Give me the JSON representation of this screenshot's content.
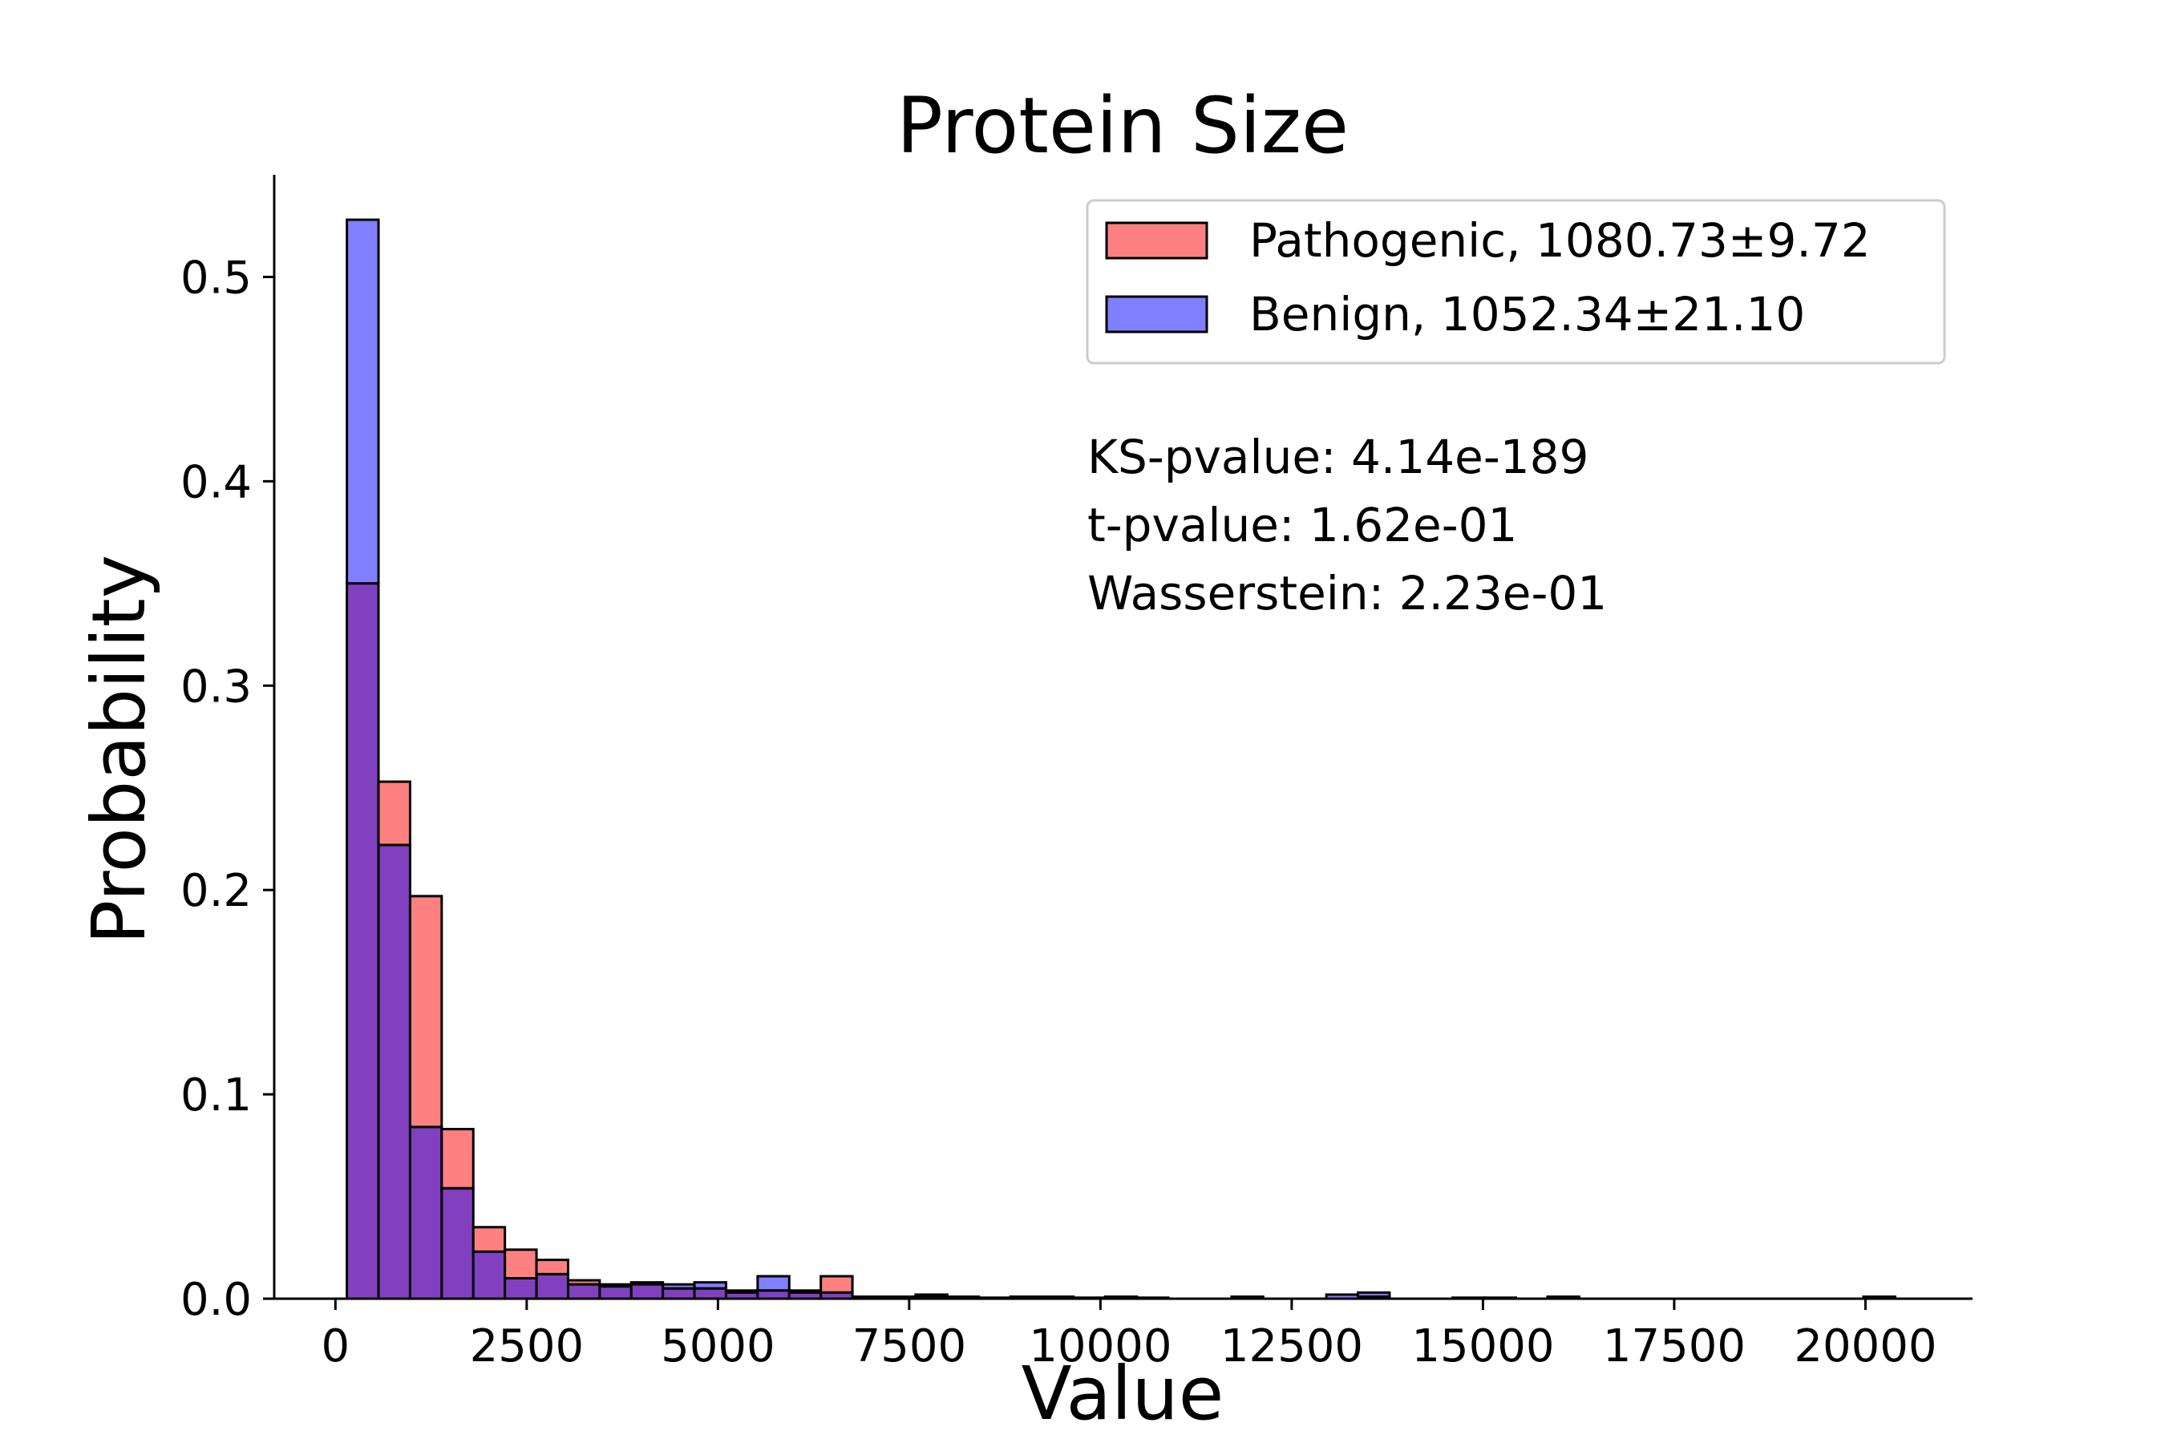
{
  "chart_data": {
    "type": "bar",
    "title": "Protein Size",
    "xlabel": "Value",
    "ylabel": "Probability",
    "xlim": [
      -800,
      21400
    ],
    "ylim": [
      0,
      0.55
    ],
    "xticks": [
      0,
      2500,
      5000,
      7500,
      10000,
      12500,
      15000,
      17500,
      20000
    ],
    "xtick_labels": [
      "0",
      "2500",
      "5000",
      "7500",
      "10000",
      "12500",
      "15000",
      "17500",
      "20000"
    ],
    "yticks": [
      0.0,
      0.1,
      0.2,
      0.3,
      0.4,
      0.5
    ],
    "ytick_labels": [
      "0.0",
      "0.1",
      "0.2",
      "0.3",
      "0.4",
      "0.5"
    ],
    "bin_edges": [
      150,
      563,
      976,
      1389,
      1802,
      2215,
      2628,
      3041,
      3454,
      3867,
      4280,
      4693,
      5106,
      5519,
      5932,
      6345,
      6758,
      7171,
      7584,
      7997,
      8410,
      8823,
      9236,
      9649,
      10062,
      10475,
      10888,
      11301,
      11714,
      12127,
      12540,
      12953,
      13366,
      13779,
      14192,
      14605,
      15018,
      15431,
      15844,
      16257,
      16670,
      17083,
      17496,
      17909,
      18322,
      18735,
      19148,
      19561,
      19974,
      20387
    ],
    "series": [
      {
        "name": "Pathogenic, 1080.73±9.72",
        "color": "#ff8080",
        "values": [
          0.35,
          0.253,
          0.197,
          0.083,
          0.035,
          0.024,
          0.019,
          0.009,
          0.006,
          0.007,
          0.005,
          0.005,
          0.003,
          0.004,
          0.004,
          0.011,
          0.001,
          0.001,
          0.001,
          0.001,
          0.0005,
          0.0005,
          0.0005,
          0.0005,
          0.0005,
          0,
          0,
          0,
          0.001,
          0,
          0,
          0,
          0.001,
          0,
          0,
          0,
          0,
          0,
          0.001,
          0,
          0,
          0,
          0,
          0,
          0,
          0,
          0,
          0,
          0.0005
        ]
      },
      {
        "name": "Benign, 1052.34±21.10",
        "color": "#8080ff",
        "values": [
          0.528,
          0.222,
          0.084,
          0.054,
          0.023,
          0.01,
          0.012,
          0.007,
          0.007,
          0.008,
          0.007,
          0.008,
          0.004,
          0.011,
          0.003,
          0.003,
          0.001,
          0.001,
          0.002,
          0.001,
          0.0005,
          0.001,
          0.001,
          0.0005,
          0.001,
          0.0005,
          0,
          0,
          0.001,
          0,
          0,
          0.002,
          0.003,
          0,
          0,
          0.0005,
          0.0005,
          0,
          0.0005,
          0,
          0,
          0,
          0,
          0,
          0,
          0,
          0,
          0,
          0.001
        ]
      }
    ],
    "overlap_color": "#8040c0",
    "legend": {
      "placement": "top-right",
      "entries": [
        "Pathogenic, 1080.73±9.72",
        "Benign, 1052.34±21.10"
      ]
    },
    "annotations": [
      "KS-pvalue: 4.14e-189",
      "t-pvalue: 1.62e-01",
      "Wasserstein: 2.23e-01"
    ],
    "grid": false
  }
}
